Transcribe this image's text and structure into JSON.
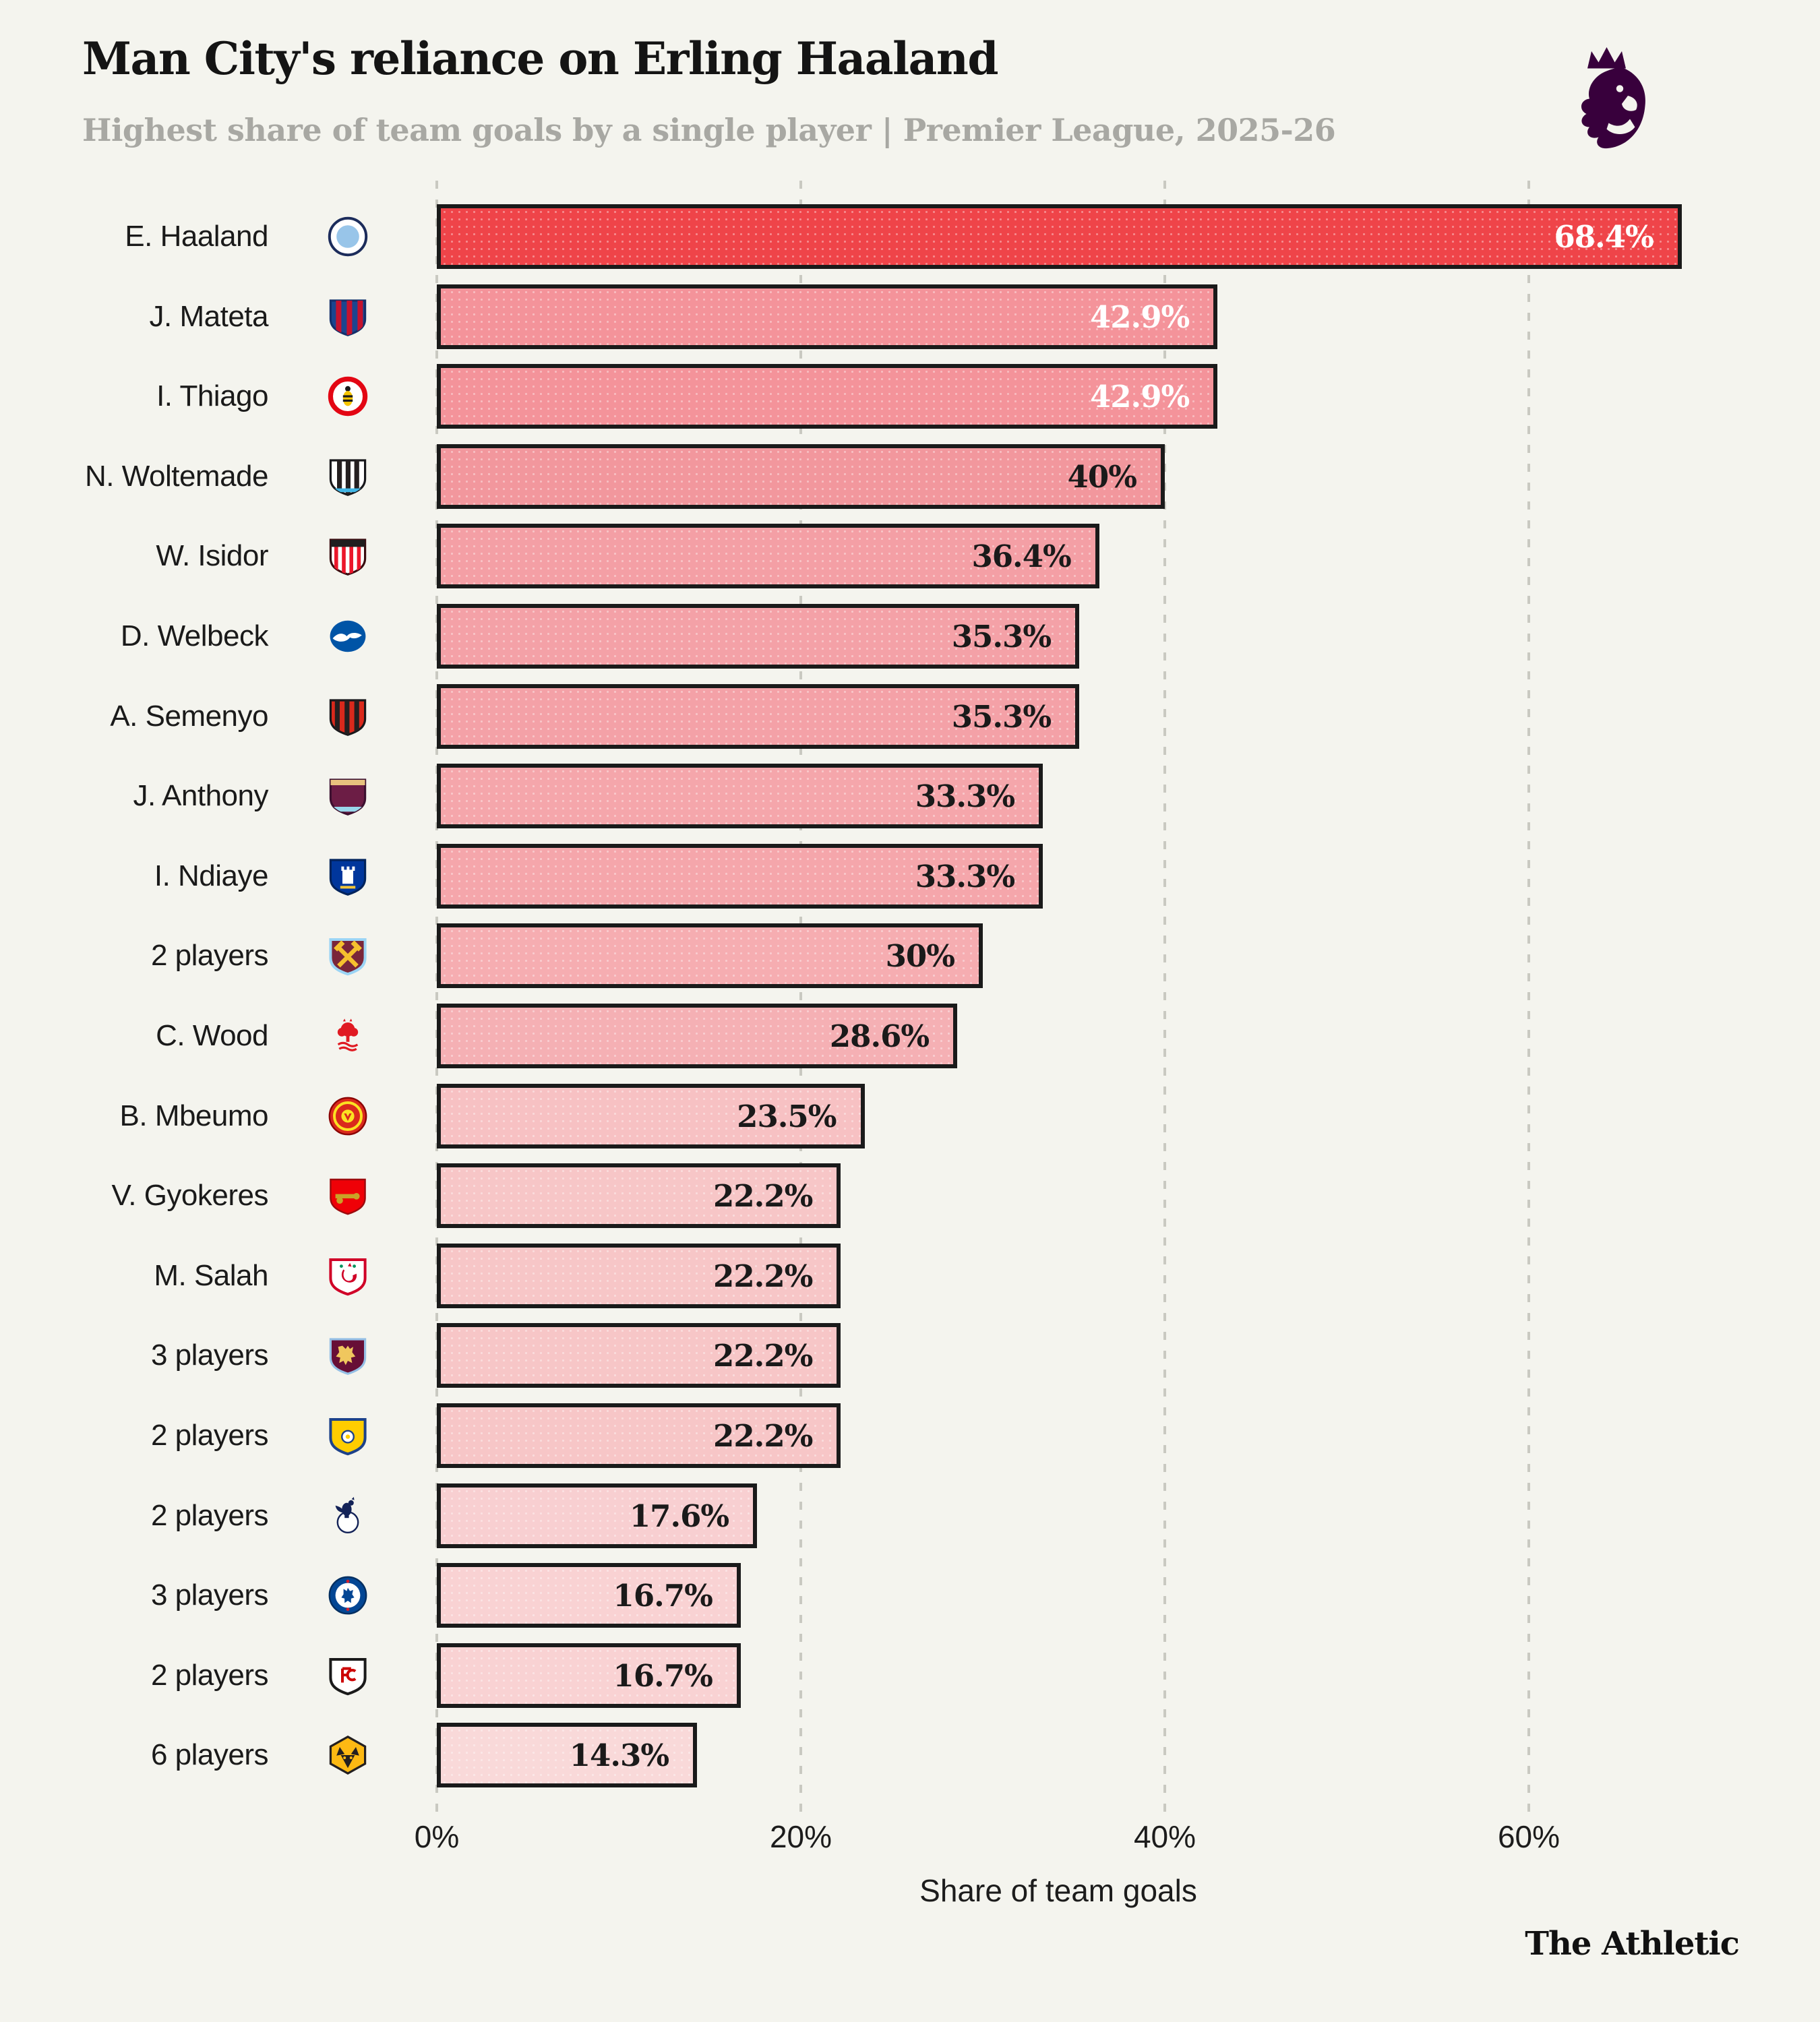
{
  "header": {
    "title": "Man City's reliance on Erling Haaland",
    "subtitle": "Highest share of team goals by a single player | Premier League, 2025-26",
    "logo": "premier-league-lion-logo",
    "logo_color": "#38003c"
  },
  "footer": {
    "brand": "The Athletic"
  },
  "chart_data": {
    "type": "bar",
    "orientation": "horizontal",
    "title": "Man City's reliance on Erling Haaland",
    "subtitle": "Highest share of team goals by a single player | Premier League, 2025-26",
    "xlabel": "Share of team goals",
    "xlim": [
      0,
      70
    ],
    "grid": "dashed-vertical-gridlines",
    "legend": "none",
    "background": "#f4f4ee",
    "bar_border_color": "#1a1a1a",
    "highlight_color": "#ef4449",
    "x_ticks": [
      {
        "label": "0%",
        "value": 0
      },
      {
        "label": "20%",
        "value": 20
      },
      {
        "label": "40%",
        "value": 40
      },
      {
        "label": "60%",
        "value": 60
      }
    ],
    "bars": [
      {
        "player": "E. Haaland",
        "club": "Manchester City",
        "crest": "man-city",
        "crest_colors": [
          "#98c5e9",
          "#ffffff",
          "#1c2c5b"
        ],
        "value": 68.4,
        "label": "68.4%",
        "fill": "#ef4449",
        "label_color": "#ffffff"
      },
      {
        "player": "J. Mateta",
        "club": "Crystal Palace",
        "crest": "crystal-palace",
        "crest_colors": [
          "#1b458f",
          "#c4122e",
          "#14306b"
        ],
        "value": 42.9,
        "label": "42.9%",
        "fill": "#f4939a",
        "label_color": "#ffffff"
      },
      {
        "player": "I. Thiago",
        "club": "Brentford",
        "crest": "brentford",
        "crest_colors": [
          "#e30613",
          "#ffffff",
          "#f6c500"
        ],
        "value": 42.9,
        "label": "42.9%",
        "fill": "#f4939a",
        "label_color": "#ffffff"
      },
      {
        "player": "N. Woltemade",
        "club": "Newcastle United",
        "crest": "newcastle",
        "crest_colors": [
          "#241f20",
          "#ffffff",
          "#41b6e6"
        ],
        "value": 40,
        "label": "40%",
        "fill": "#f2979d",
        "label_color": "#1a1a1a"
      },
      {
        "player": "W. Isidor",
        "club": "Sunderland",
        "crest": "sunderland",
        "crest_colors": [
          "#eb172b",
          "#ffffff",
          "#211e1f"
        ],
        "value": 36.4,
        "label": "36.4%",
        "fill": "#f49fa5",
        "label_color": "#1a1a1a"
      },
      {
        "player": "D. Welbeck",
        "club": "Brighton & Hove Albion",
        "crest": "brighton",
        "crest_colors": [
          "#0054a6",
          "#ffffff",
          "#ffffff"
        ],
        "value": 35.3,
        "label": "35.3%",
        "fill": "#f4a1a7",
        "label_color": "#1a1a1a"
      },
      {
        "player": "A. Semenyo",
        "club": "AFC Bournemouth",
        "crest": "bournemouth",
        "crest_colors": [
          "#241f20",
          "#da291c",
          "#ffffff"
        ],
        "value": 35.3,
        "label": "35.3%",
        "fill": "#f4a1a7",
        "label_color": "#1a1a1a"
      },
      {
        "player": "J. Anthony",
        "club": "Burnley",
        "crest": "burnley",
        "crest_colors": [
          "#6c1d45",
          "#e8c27e",
          "#99d6ea"
        ],
        "value": 33.3,
        "label": "33.3%",
        "fill": "#f5a6ab",
        "label_color": "#1a1a1a"
      },
      {
        "player": "I. Ndiaye",
        "club": "Everton",
        "crest": "everton",
        "crest_colors": [
          "#00369c",
          "#ffffff",
          "#f3c438"
        ],
        "value": 33.3,
        "label": "33.3%",
        "fill": "#f5a6ab",
        "label_color": "#1a1a1a"
      },
      {
        "player": "2 players",
        "club": "West Ham United",
        "crest": "west-ham",
        "crest_colors": [
          "#7a263a",
          "#f6c12e",
          "#9bd4f5"
        ],
        "value": 30,
        "label": "30%",
        "fill": "#f6adb1",
        "label_color": "#1a1a1a"
      },
      {
        "player": "C. Wood",
        "club": "Nottingham Forest",
        "crest": "forest",
        "crest_colors": [
          "#e01a22",
          "#ffffff",
          "#e01a22"
        ],
        "value": 28.6,
        "label": "28.6%",
        "fill": "#f5b0b4",
        "label_color": "#1a1a1a"
      },
      {
        "player": "B. Mbeumo",
        "club": "Manchester United",
        "crest": "man-utd",
        "crest_colors": [
          "#da291c",
          "#fbe122",
          "#8b0304"
        ],
        "value": 23.5,
        "label": "23.5%",
        "fill": "#f7c1c3",
        "label_color": "#1a1a1a"
      },
      {
        "player": "V. Gyokeres",
        "club": "Arsenal",
        "crest": "arsenal",
        "crest_colors": [
          "#ef0107",
          "#c9a227",
          "#063672"
        ],
        "value": 22.2,
        "label": "22.2%",
        "fill": "#f7c6c7",
        "label_color": "#1a1a1a"
      },
      {
        "player": "M. Salah",
        "club": "Liverpool",
        "crest": "liverpool",
        "crest_colors": [
          "#d00027",
          "#ffffff",
          "#00915b"
        ],
        "value": 22.2,
        "label": "22.2%",
        "fill": "#f7c6c7",
        "label_color": "#1a1a1a"
      },
      {
        "player": "3 players",
        "club": "Aston Villa",
        "crest": "aston-villa",
        "crest_colors": [
          "#670e36",
          "#f0c75e",
          "#95bfe5"
        ],
        "value": 22.2,
        "label": "22.2%",
        "fill": "#f7c6c7",
        "label_color": "#1a1a1a"
      },
      {
        "player": "2 players",
        "club": "Leeds United",
        "crest": "leeds",
        "crest_colors": [
          "#ffcd00",
          "#1d428a",
          "#ffffff"
        ],
        "value": 22.2,
        "label": "22.2%",
        "fill": "#f7c6c7",
        "label_color": "#1a1a1a"
      },
      {
        "player": "2 players",
        "club": "Tottenham Hotspur",
        "crest": "tottenham",
        "crest_colors": [
          "#132257",
          "#ffffff",
          "#132257"
        ],
        "value": 17.6,
        "label": "17.6%",
        "fill": "#f8cfd1",
        "label_color": "#1a1a1a"
      },
      {
        "player": "3 players",
        "club": "Chelsea",
        "crest": "chelsea",
        "crest_colors": [
          "#034694",
          "#ffffff",
          "#d41e2c"
        ],
        "value": 16.7,
        "label": "16.7%",
        "fill": "#f9d2d3",
        "label_color": "#1a1a1a"
      },
      {
        "player": "2 players",
        "club": "Fulham",
        "crest": "fulham",
        "crest_colors": [
          "#1a1a1a",
          "#ffffff",
          "#cc0000"
        ],
        "value": 16.7,
        "label": "16.7%",
        "fill": "#f9d2d3",
        "label_color": "#1a1a1a"
      },
      {
        "player": "6 players",
        "club": "Wolverhampton Wanderers",
        "crest": "wolves",
        "crest_colors": [
          "#fdb913",
          "#231f20",
          "#fdb913"
        ],
        "value": 14.3,
        "label": "14.3%",
        "fill": "#f9d9d9",
        "label_color": "#1a1a1a"
      }
    ]
  }
}
